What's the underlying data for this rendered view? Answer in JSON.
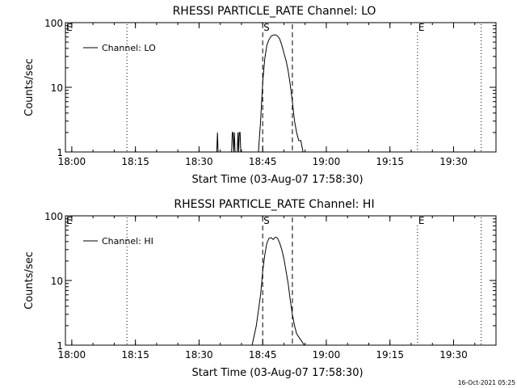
{
  "footer_timestamp": "16-Oct-2021 05:25",
  "chart_data": [
    {
      "type": "line",
      "title": "RHESSI PARTICLE_RATE Channel: LO",
      "xlabel": "Start Time (03-Aug-07 17:58:30)",
      "ylabel": "Counts/sec",
      "y_scale": "log",
      "ylim": [
        1,
        100
      ],
      "xlim": [
        "17:58:30",
        "19:40:00"
      ],
      "x_ticks": [
        "18:00",
        "18:15",
        "18:30",
        "18:45",
        "19:00",
        "19:15",
        "19:30"
      ],
      "y_ticks": [
        "1",
        "10",
        "100"
      ],
      "legend": {
        "position": "top-left",
        "entries": [
          "Channel: LO"
        ]
      },
      "grid": false,
      "markers": [
        {
          "label": "E",
          "time": "17:58:30",
          "style": "dotted"
        },
        {
          "label": "",
          "time": "18:13:00",
          "style": "dotted"
        },
        {
          "label": "S",
          "time": "18:45:00",
          "style": "dashed"
        },
        {
          "label": "",
          "time": "18:52:00",
          "style": "dashed"
        },
        {
          "label": "E",
          "time": "19:21:30",
          "style": "dotted"
        },
        {
          "label": "",
          "time": "19:36:30",
          "style": "dotted"
        }
      ],
      "series": [
        {
          "x": [
            "18:34:10",
            "18:34:20",
            "18:34:30",
            "18:37:40",
            "18:37:50",
            "18:38:00",
            "18:38:10",
            "18:38:20",
            "18:38:30",
            "18:39:00",
            "18:39:10",
            "18:39:20",
            "18:39:30",
            "18:39:40",
            "18:39:50",
            "18:40:00",
            "18:44:00",
            "18:44:30",
            "18:45:00",
            "18:45:30",
            "18:46:00",
            "18:46:30",
            "18:47:00",
            "18:47:30",
            "18:48:00",
            "18:48:30",
            "18:49:00",
            "18:49:30",
            "18:50:00",
            "18:50:30",
            "18:51:00",
            "18:51:30",
            "18:52:00",
            "18:52:30",
            "18:53:00",
            "18:53:30",
            "18:54:00",
            "18:54:30",
            "18:54:50"
          ],
          "values": [
            1,
            2,
            1,
            1,
            2,
            2,
            1,
            2,
            1,
            1,
            2,
            1,
            2,
            2,
            1,
            1,
            1,
            3,
            12,
            28,
            45,
            55,
            62,
            64,
            65,
            62,
            56,
            45,
            34,
            26,
            18,
            11,
            6,
            3,
            2,
            1.5,
            1.5,
            1,
            1
          ]
        }
      ]
    },
    {
      "type": "line",
      "title": "RHESSI PARTICLE_RATE Channel: HI",
      "xlabel": "Start Time (03-Aug-07 17:58:30)",
      "ylabel": "Counts/sec",
      "y_scale": "log",
      "ylim": [
        1,
        100
      ],
      "xlim": [
        "17:58:30",
        "19:40:00"
      ],
      "x_ticks": [
        "18:00",
        "18:15",
        "18:30",
        "18:45",
        "19:00",
        "19:15",
        "19:30"
      ],
      "y_ticks": [
        "1",
        "10",
        "100"
      ],
      "legend": {
        "position": "top-left",
        "entries": [
          "Channel: HI"
        ]
      },
      "grid": false,
      "markers": [
        {
          "label": "E",
          "time": "17:58:30",
          "style": "dotted"
        },
        {
          "label": "",
          "time": "18:13:00",
          "style": "dotted"
        },
        {
          "label": "S",
          "time": "18:45:00",
          "style": "dashed"
        },
        {
          "label": "",
          "time": "18:52:00",
          "style": "dashed"
        },
        {
          "label": "E",
          "time": "19:21:30",
          "style": "dotted"
        },
        {
          "label": "",
          "time": "19:36:30",
          "style": "dotted"
        }
      ],
      "series": [
        {
          "x": [
            "18:42:30",
            "18:43:30",
            "18:44:30",
            "18:45:00",
            "18:45:30",
            "18:46:00",
            "18:46:30",
            "18:47:00",
            "18:47:30",
            "18:48:00",
            "18:48:30",
            "18:49:00",
            "18:49:30",
            "18:50:00",
            "18:50:30",
            "18:51:00",
            "18:51:30",
            "18:52:00",
            "18:52:30",
            "18:53:00",
            "18:54:00",
            "18:54:50"
          ],
          "values": [
            1,
            2,
            6,
            14,
            25,
            38,
            45,
            46,
            43,
            47,
            45,
            38,
            30,
            22,
            14,
            9,
            5,
            3,
            2,
            1.5,
            1.2,
            1
          ]
        }
      ]
    }
  ]
}
